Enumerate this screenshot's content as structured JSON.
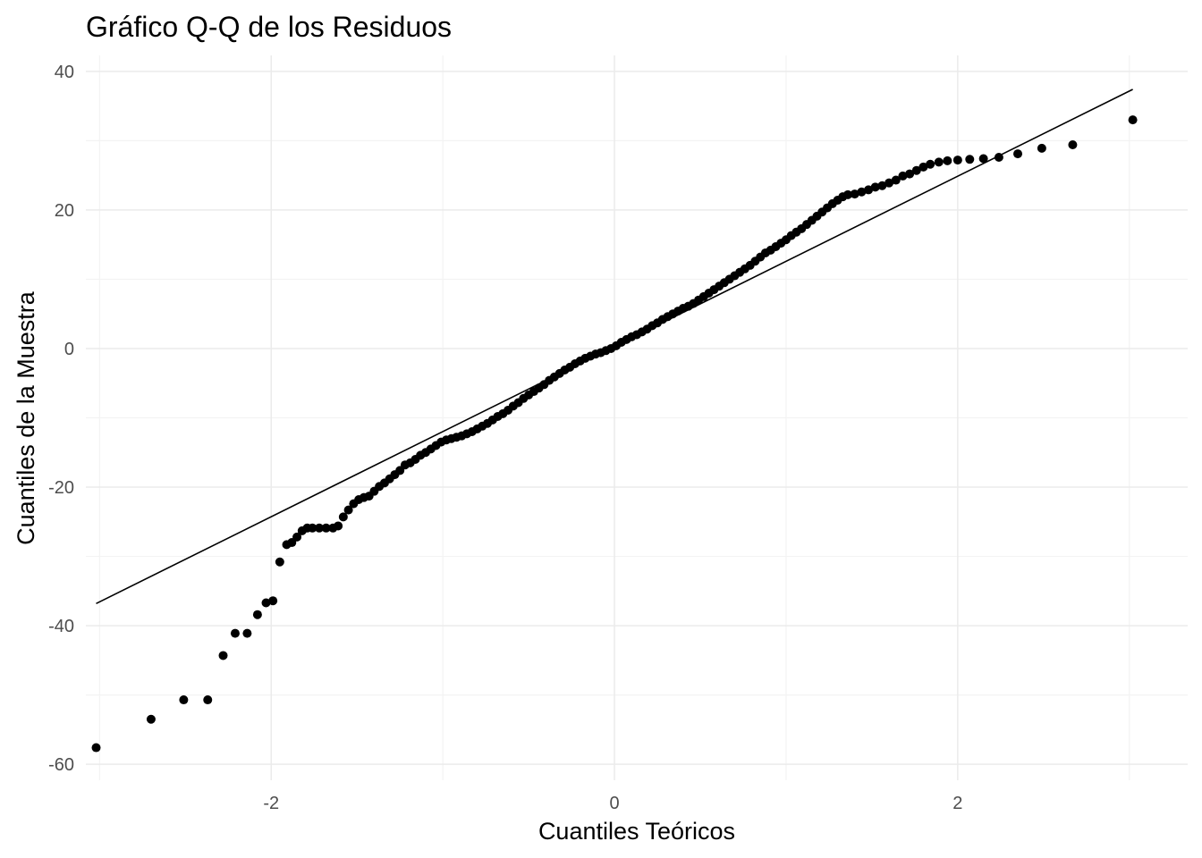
{
  "chart_data": {
    "type": "scatter",
    "title": "Gráfico Q-Q de los Residuos",
    "xlabel": "Cuantiles Teóricos",
    "ylabel": "Cuantiles de la Muestra",
    "xlim": [
      -3.08,
      3.34
    ],
    "ylim": [
      -62.3,
      42.3
    ],
    "x_ticks": [
      -2,
      0,
      2
    ],
    "x_tick_labels": [
      "-2",
      "0",
      "2"
    ],
    "y_ticks": [
      -60,
      -40,
      -20,
      0,
      20,
      40
    ],
    "y_tick_labels": [
      "-60",
      "-40",
      "-20",
      "0",
      "20",
      "40"
    ],
    "grid": true,
    "point_color": "#000000",
    "reference_line": {
      "x": [
        -3.02,
        3.02
      ],
      "y": [
        -36.8,
        37.4
      ],
      "color": "#000000"
    },
    "points": [
      [
        -3.02,
        -57.6
      ],
      [
        -2.7,
        -53.5
      ],
      [
        -2.51,
        -50.7
      ],
      [
        -2.37,
        -50.7
      ],
      [
        -2.28,
        -44.3
      ],
      [
        -2.21,
        -41.1
      ],
      [
        -2.14,
        -41.1
      ],
      [
        -2.08,
        -38.4
      ],
      [
        -2.03,
        -36.7
      ],
      [
        -1.99,
        -36.4
      ],
      [
        -1.95,
        -30.8
      ],
      [
        -1.91,
        -28.3
      ],
      [
        -1.88,
        -28.0
      ],
      [
        -1.85,
        -27.2
      ],
      [
        -1.82,
        -26.3
      ],
      [
        -1.79,
        -25.9
      ],
      [
        -1.76,
        -25.9
      ],
      [
        -1.72,
        -25.9
      ],
      [
        -1.68,
        -25.9
      ],
      [
        -1.64,
        -25.9
      ],
      [
        -1.61,
        -25.6
      ],
      [
        -1.58,
        -24.3
      ],
      [
        -1.55,
        -23.3
      ],
      [
        -1.52,
        -22.4
      ],
      [
        -1.49,
        -21.8
      ],
      [
        -1.46,
        -21.5
      ],
      [
        -1.43,
        -21.3
      ],
      [
        -1.4,
        -20.6
      ],
      [
        -1.37,
        -19.9
      ],
      [
        -1.34,
        -19.4
      ],
      [
        -1.31,
        -18.8
      ],
      [
        -1.28,
        -18.2
      ],
      [
        -1.25,
        -17.6
      ],
      [
        -1.22,
        -16.8
      ],
      [
        -1.19,
        -16.5
      ],
      [
        -1.16,
        -16.0
      ],
      [
        -1.13,
        -15.4
      ],
      [
        -1.1,
        -15.0
      ],
      [
        -1.07,
        -14.5
      ],
      [
        -1.04,
        -14.0
      ],
      [
        -1.01,
        -13.5
      ],
      [
        -0.98,
        -13.2
      ],
      [
        -0.95,
        -13.0
      ],
      [
        -0.92,
        -12.8
      ],
      [
        -0.89,
        -12.6
      ],
      [
        -0.86,
        -12.3
      ],
      [
        -0.83,
        -12.0
      ],
      [
        -0.8,
        -11.6
      ],
      [
        -0.77,
        -11.2
      ],
      [
        -0.74,
        -10.8
      ],
      [
        -0.71,
        -10.3
      ],
      [
        -0.68,
        -9.8
      ],
      [
        -0.65,
        -9.4
      ],
      [
        -0.62,
        -8.9
      ],
      [
        -0.59,
        -8.3
      ],
      [
        -0.56,
        -7.8
      ],
      [
        -0.53,
        -7.2
      ],
      [
        -0.5,
        -6.7
      ],
      [
        -0.47,
        -6.2
      ],
      [
        -0.44,
        -5.7
      ],
      [
        -0.41,
        -5.2
      ],
      [
        -0.38,
        -4.6
      ],
      [
        -0.35,
        -4.1
      ],
      [
        -0.32,
        -3.6
      ],
      [
        -0.29,
        -3.1
      ],
      [
        -0.26,
        -2.7
      ],
      [
        -0.23,
        -2.2
      ],
      [
        -0.2,
        -1.8
      ],
      [
        -0.17,
        -1.4
      ],
      [
        -0.14,
        -1.1
      ],
      [
        -0.11,
        -0.8
      ],
      [
        -0.08,
        -0.6
      ],
      [
        -0.05,
        -0.3
      ],
      [
        -0.02,
        0.0
      ],
      [
        0.01,
        0.4
      ],
      [
        0.04,
        0.9
      ],
      [
        0.07,
        1.3
      ],
      [
        0.1,
        1.7
      ],
      [
        0.13,
        2.0
      ],
      [
        0.16,
        2.4
      ],
      [
        0.19,
        2.8
      ],
      [
        0.22,
        3.3
      ],
      [
        0.25,
        3.7
      ],
      [
        0.28,
        4.2
      ],
      [
        0.31,
        4.6
      ],
      [
        0.34,
        5.0
      ],
      [
        0.37,
        5.4
      ],
      [
        0.4,
        5.8
      ],
      [
        0.43,
        6.1
      ],
      [
        0.46,
        6.5
      ],
      [
        0.49,
        7.0
      ],
      [
        0.52,
        7.5
      ],
      [
        0.55,
        8.0
      ],
      [
        0.58,
        8.5
      ],
      [
        0.61,
        9.0
      ],
      [
        0.64,
        9.5
      ],
      [
        0.67,
        10.0
      ],
      [
        0.7,
        10.5
      ],
      [
        0.73,
        11.0
      ],
      [
        0.76,
        11.5
      ],
      [
        0.79,
        12.0
      ],
      [
        0.82,
        12.6
      ],
      [
        0.85,
        13.2
      ],
      [
        0.88,
        13.8
      ],
      [
        0.91,
        14.2
      ],
      [
        0.94,
        14.7
      ],
      [
        0.97,
        15.2
      ],
      [
        1.0,
        15.7
      ],
      [
        1.03,
        16.3
      ],
      [
        1.06,
        16.8
      ],
      [
        1.09,
        17.3
      ],
      [
        1.12,
        17.9
      ],
      [
        1.15,
        18.5
      ],
      [
        1.18,
        19.1
      ],
      [
        1.21,
        19.7
      ],
      [
        1.24,
        20.3
      ],
      [
        1.27,
        20.9
      ],
      [
        1.3,
        21.4
      ],
      [
        1.33,
        21.9
      ],
      [
        1.36,
        22.2
      ],
      [
        1.4,
        22.3
      ],
      [
        1.44,
        22.6
      ],
      [
        1.48,
        22.9
      ],
      [
        1.52,
        23.3
      ],
      [
        1.56,
        23.5
      ],
      [
        1.6,
        23.9
      ],
      [
        1.64,
        24.3
      ],
      [
        1.68,
        24.9
      ],
      [
        1.72,
        25.2
      ],
      [
        1.76,
        25.7
      ],
      [
        1.8,
        26.2
      ],
      [
        1.84,
        26.6
      ],
      [
        1.89,
        26.9
      ],
      [
        1.94,
        27.1
      ],
      [
        2.0,
        27.2
      ],
      [
        2.07,
        27.3
      ],
      [
        2.15,
        27.4
      ],
      [
        2.24,
        27.6
      ],
      [
        2.35,
        28.1
      ],
      [
        2.49,
        28.9
      ],
      [
        2.67,
        29.4
      ],
      [
        3.02,
        33.0
      ]
    ]
  }
}
